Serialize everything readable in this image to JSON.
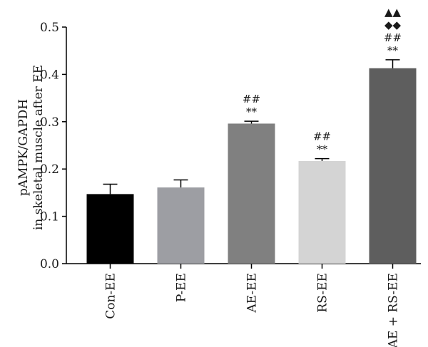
{
  "chart_data": {
    "type": "bar",
    "ylabel_lines": [
      "pAMPK/GAPDH",
      "in skeletal muscle after EE"
    ],
    "xlabel": "",
    "ylim": [
      0,
      0.5
    ],
    "yticks": [
      "0.0",
      "0.1",
      "0.2",
      "0.3",
      "0.4",
      "0.5"
    ],
    "categories": [
      "Con-EE",
      "P-EE",
      "AE-EE",
      "RS-EE",
      "AE + RS-EE"
    ],
    "values": [
      0.147,
      0.161,
      0.296,
      0.217,
      0.413
    ],
    "errors": [
      0.021,
      0.016,
      0.005,
      0.005,
      0.018
    ],
    "colors": [
      "#000000",
      "#9d9ea3",
      "#808080",
      "#d4d4d4",
      "#5e5e5e"
    ],
    "annotations": [
      [],
      [],
      [
        "**",
        "##"
      ],
      [
        "**",
        "##"
      ],
      [
        "**",
        "##",
        "◆◆",
        "▲▲"
      ]
    ],
    "grid": false
  }
}
